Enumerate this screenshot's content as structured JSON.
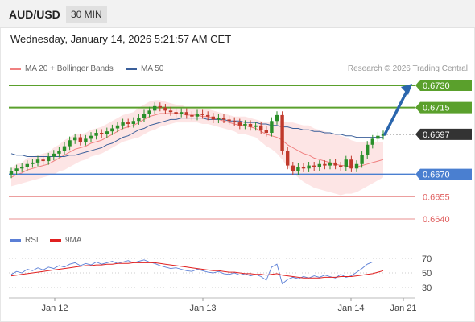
{
  "header": {
    "symbol": "AUD/USD",
    "interval": "30 MIN"
  },
  "datetime": "Wednesday, January 14, 2026 5:21:57 AM CET",
  "legend": {
    "ma20": "MA 20 + Bollinger Bands",
    "ma50": "MA 50"
  },
  "credit": "Research © 2026 Trading Central",
  "rsi_legend": {
    "rsi": "RSI",
    "ma9": "9MA"
  },
  "colors": {
    "up": "#2a8f2a",
    "down": "#c0392b",
    "resistance": "#5aa02c",
    "support": "#4a7fd0",
    "target_low": "#e06060",
    "arrow": "#2a66ad",
    "current": "#333333",
    "ma20": "#f08080",
    "ma50": "#3a5f9a",
    "band": "#fde0e0",
    "rsi": "#5b7fd6",
    "rsi_ma": "#e02020"
  },
  "chart_data": [
    {
      "type": "candlestick",
      "x_ticks": [
        "Jan 12",
        "Jan 13",
        "Jan 14",
        "Jan 21"
      ],
      "ylim": [
        0.6635,
        0.6735
      ],
      "levels": [
        {
          "value": "0.6730",
          "kind": "resistance"
        },
        {
          "value": "0.6715",
          "kind": "resistance"
        },
        {
          "value": "0.6697",
          "kind": "current"
        },
        {
          "value": "0.6670",
          "kind": "support"
        },
        {
          "value": "0.6655",
          "kind": "target_low"
        },
        {
          "value": "0.6640",
          "kind": "target_low"
        }
      ],
      "forecast_arrow": {
        "from": 0.6697,
        "to": 0.673
      },
      "close": [
        0.6672,
        0.6674,
        0.6675,
        0.6677,
        0.6678,
        0.668,
        0.6679,
        0.6682,
        0.6684,
        0.6686,
        0.6689,
        0.6693,
        0.6695,
        0.6692,
        0.6694,
        0.6696,
        0.6698,
        0.6697,
        0.6699,
        0.6701,
        0.6703,
        0.6705,
        0.6704,
        0.6706,
        0.6708,
        0.6711,
        0.6713,
        0.6716,
        0.6715,
        0.6713,
        0.6712,
        0.6711,
        0.6712,
        0.671,
        0.6709,
        0.6711,
        0.671,
        0.6709,
        0.6707,
        0.6708,
        0.6707,
        0.6706,
        0.6705,
        0.6703,
        0.6704,
        0.6702,
        0.6703,
        0.67,
        0.6698,
        0.6706,
        0.671,
        0.6686,
        0.6676,
        0.6672,
        0.6675,
        0.6674,
        0.6676,
        0.6675,
        0.6677,
        0.6676,
        0.6678,
        0.6676,
        0.6675,
        0.668,
        0.6674,
        0.6677,
        0.6683,
        0.669,
        0.6694,
        0.6696,
        0.6697
      ],
      "ma20": [
        0.6668,
        0.667,
        0.6671,
        0.6673,
        0.6674,
        0.6675,
        0.6676,
        0.6677,
        0.6679,
        0.6681,
        0.6683,
        0.6685,
        0.6687,
        0.6688,
        0.6689,
        0.6691,
        0.6692,
        0.6693,
        0.6695,
        0.6697,
        0.6699,
        0.6701,
        0.6702,
        0.6703,
        0.6705,
        0.6707,
        0.6709,
        0.671,
        0.6711,
        0.6711,
        0.6711,
        0.6711,
        0.6711,
        0.671,
        0.671,
        0.671,
        0.6709,
        0.6709,
        0.6708,
        0.6707,
        0.6706,
        0.6705,
        0.6704,
        0.6703,
        0.6703,
        0.6702,
        0.6701,
        0.6699,
        0.6697,
        0.6696,
        0.6695,
        0.6693,
        0.669,
        0.6688,
        0.6686,
        0.6684,
        0.6683,
        0.6681,
        0.668,
        0.6679,
        0.6678,
        0.6677,
        0.6676,
        0.6676,
        0.6675,
        0.6675,
        0.6676,
        0.6677,
        0.6678,
        0.6679,
        0.668
      ],
      "ma50": [
        0.6684,
        0.6683,
        0.6683,
        0.6682,
        0.6682,
        0.6682,
        0.6682,
        0.6682,
        0.6682,
        0.6682,
        0.6682,
        0.6683,
        0.6683,
        0.6684,
        0.6685,
        0.6686,
        0.6687,
        0.6688,
        0.669,
        0.6691,
        0.6693,
        0.6695,
        0.6696,
        0.6698,
        0.67,
        0.6701,
        0.6703,
        0.6704,
        0.6705,
        0.6706,
        0.6707,
        0.6707,
        0.6708,
        0.6708,
        0.6708,
        0.6708,
        0.6708,
        0.6707,
        0.6707,
        0.6707,
        0.6707,
        0.6706,
        0.6706,
        0.6706,
        0.6705,
        0.6705,
        0.6705,
        0.6704,
        0.6704,
        0.6703,
        0.6703,
        0.6702,
        0.6702,
        0.6701,
        0.6701,
        0.67,
        0.67,
        0.6699,
        0.6699,
        0.6698,
        0.6698,
        0.6697,
        0.6697,
        0.6696,
        0.6696,
        0.6695,
        0.6695,
        0.6695,
        0.6695,
        0.6695,
        0.6695
      ],
      "band_width": [
        0.0006,
        0.0007,
        0.0007,
        0.0008,
        0.0008,
        0.0008,
        0.0008,
        0.0008,
        0.0009,
        0.0009,
        0.001,
        0.001,
        0.001,
        0.0009,
        0.0009,
        0.0009,
        0.0009,
        0.0009,
        0.0009,
        0.0009,
        0.0009,
        0.0009,
        0.0009,
        0.0009,
        0.001,
        0.001,
        0.001,
        0.001,
        0.0009,
        0.0008,
        0.0007,
        0.0006,
        0.0006,
        0.0005,
        0.0005,
        0.0005,
        0.0005,
        0.0005,
        0.0005,
        0.0005,
        0.0005,
        0.0005,
        0.0005,
        0.0006,
        0.0006,
        0.0006,
        0.0006,
        0.0007,
        0.0008,
        0.0009,
        0.0011,
        0.0013,
        0.0015,
        0.0017,
        0.0018,
        0.0019,
        0.002,
        0.002,
        0.002,
        0.002,
        0.002,
        0.002,
        0.002,
        0.0019,
        0.0018,
        0.0017,
        0.0016,
        0.0015,
        0.0014,
        0.0013,
        0.0012
      ]
    },
    {
      "type": "line",
      "title": "RSI",
      "y_ticks": [
        "70",
        "50",
        "30"
      ],
      "ylim": [
        20,
        80
      ],
      "rsi": [
        48,
        52,
        50,
        55,
        53,
        57,
        54,
        58,
        56,
        60,
        58,
        62,
        64,
        60,
        63,
        61,
        65,
        62,
        64,
        66,
        63,
        65,
        67,
        64,
        66,
        68,
        65,
        63,
        60,
        58,
        56,
        57,
        55,
        53,
        52,
        55,
        53,
        51,
        50,
        52,
        49,
        48,
        50,
        47,
        49,
        46,
        48,
        45,
        40,
        58,
        62,
        35,
        41,
        44,
        42,
        45,
        43,
        46,
        44,
        47,
        45,
        43,
        48,
        44,
        46,
        51,
        56,
        62,
        65,
        65,
        65
      ],
      "rsi_ma": [
        46,
        47,
        48,
        49,
        50,
        51,
        52,
        53,
        54,
        55,
        56,
        57,
        58,
        59,
        60,
        60,
        61,
        61,
        62,
        62,
        63,
        63,
        63,
        64,
        64,
        64,
        64,
        64,
        63,
        62,
        61,
        60,
        59,
        58,
        57,
        56,
        55,
        54,
        53,
        53,
        52,
        51,
        51,
        50,
        49,
        49,
        48,
        48,
        47,
        48,
        49,
        47,
        46,
        45,
        44,
        43,
        43,
        43,
        43,
        44,
        44,
        44,
        45,
        45,
        45,
        46,
        47,
        48,
        49,
        51,
        53
      ]
    }
  ]
}
